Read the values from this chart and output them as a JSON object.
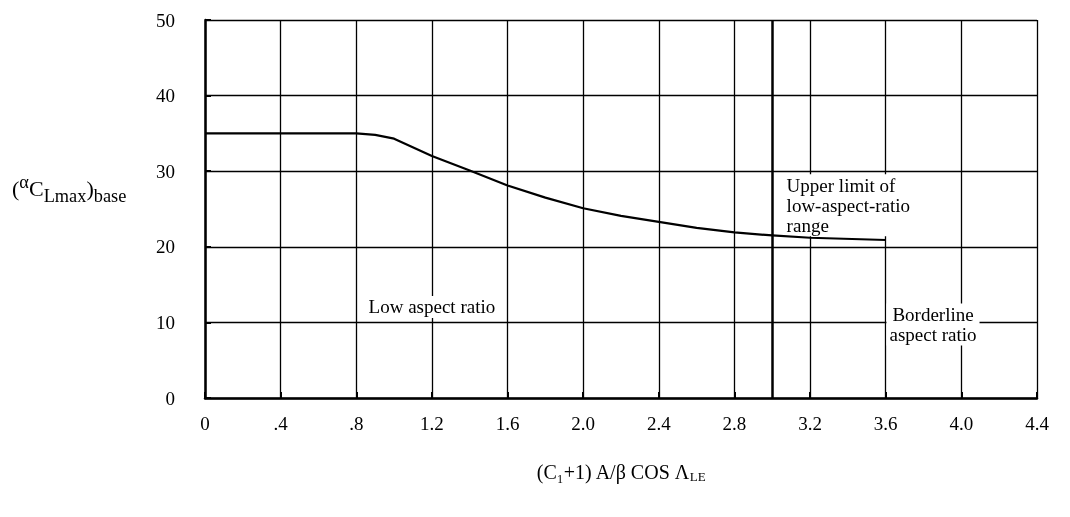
{
  "chart_data": {
    "type": "line",
    "xlabel": "(C₁+1) A/β COS Λ$_{LE}$",
    "ylabel": "($^{α}$C$_{Lmax}$)$_{base}$",
    "x": [
      0,
      0.4,
      0.8,
      0.9,
      1.0,
      1.2,
      1.4,
      1.6,
      1.8,
      2.0,
      2.2,
      2.4,
      2.6,
      2.8,
      3.0,
      3.2,
      3.6
    ],
    "series": [
      {
        "color": "#000000",
        "values": [
          35,
          35,
          35,
          34.8,
          34.3,
          32.0,
          30.1,
          28.1,
          26.5,
          25.1,
          24.1,
          23.3,
          22.5,
          21.9,
          21.5,
          21.2,
          20.9
        ]
      }
    ],
    "xlim": [
      0,
      4.4
    ],
    "xticks": [
      0,
      {
        "value": 0.4,
        "label": ".4"
      },
      {
        "value": 0.8,
        "label": ".8"
      },
      1.2,
      1.6,
      {
        "value": 2,
        "label": "2.0"
      },
      2.4,
      2.8,
      3.2,
      3.6,
      {
        "value": 4,
        "label": "4.0"
      },
      4.4
    ],
    "ylim": [
      0,
      50
    ],
    "yticks": [
      0,
      10,
      20,
      30,
      40,
      50
    ],
    "ref_lines": [
      {
        "axis": "x",
        "value": 3.0,
        "color": "#000000"
      }
    ],
    "annotations": [
      "Low aspect ratio",
      "Upper limit of\nlow-aspect-ratio\nrange",
      "Borderline\naspect ratio"
    ],
    "grid": true,
    "marker": "none",
    "line_style": "solid"
  }
}
